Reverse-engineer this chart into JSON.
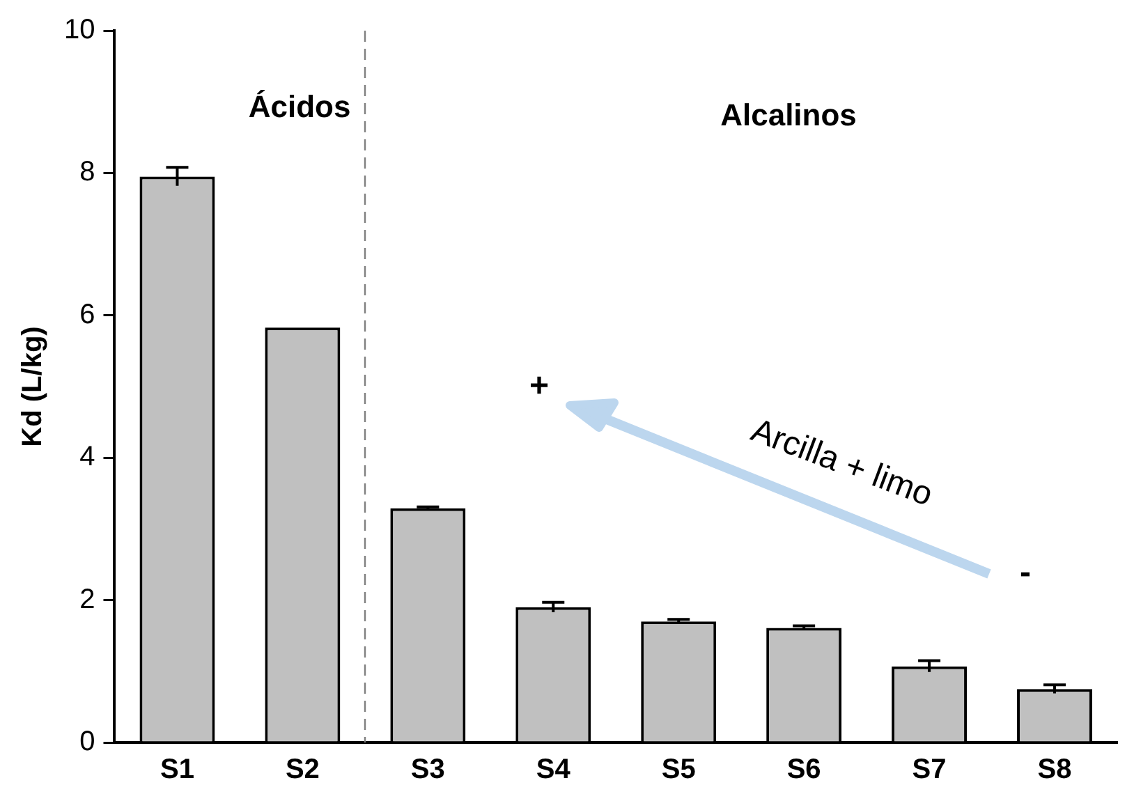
{
  "chart_data": {
    "type": "bar",
    "ylabel": "Kd (L/kg)",
    "categories": [
      "S1",
      "S2",
      "S3",
      "S4",
      "S5",
      "S6",
      "S7",
      "S8"
    ],
    "values": [
      7.95,
      5.83,
      3.29,
      1.9,
      1.7,
      1.61,
      1.07,
      0.75
    ],
    "errors": [
      0.13,
      null,
      0.02,
      0.07,
      0.03,
      0.03,
      0.08,
      0.06
    ],
    "color": "#c0c0c0",
    "ylim": [
      0,
      10
    ],
    "yticks": [
      0,
      2,
      4,
      6,
      8,
      10
    ],
    "grid": false,
    "annotations": [
      "Ácidos",
      "Alcalinos",
      "+",
      "-",
      "Arcilla + limo"
    ]
  }
}
